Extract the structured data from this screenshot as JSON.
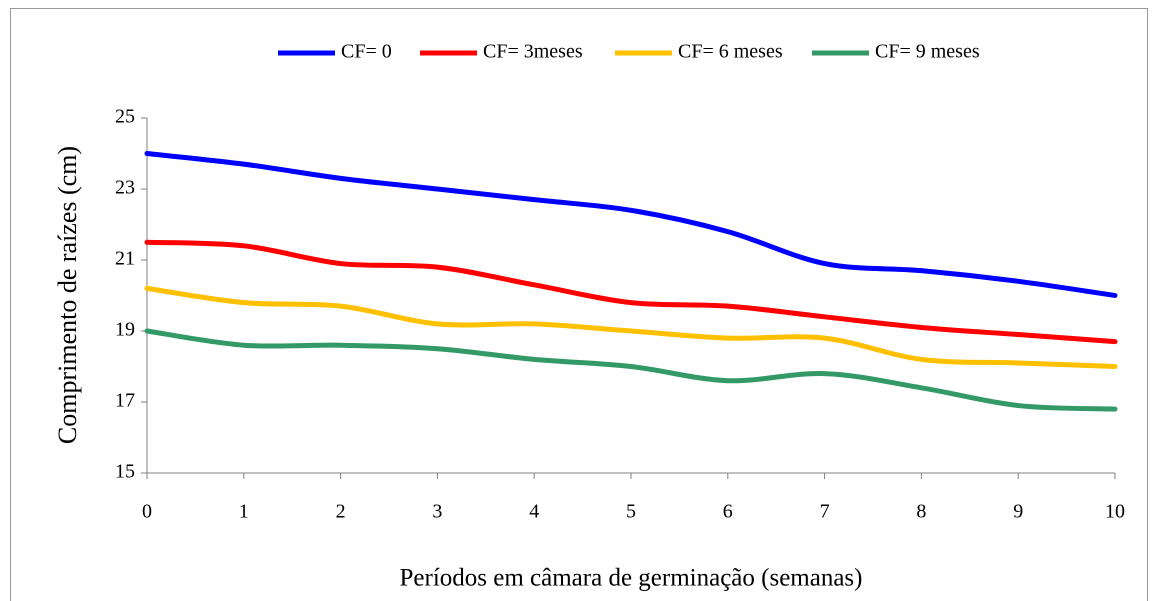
{
  "chart_data": {
    "type": "line",
    "x_label": "Períodos em câmara de germinação (semanas)",
    "y_label": "Comprimento de raízes (cm)",
    "x": [
      0,
      1,
      2,
      3,
      4,
      5,
      6,
      7,
      8,
      9,
      10
    ],
    "xlim": [
      0,
      10
    ],
    "xticks": [
      0,
      1,
      2,
      3,
      4,
      5,
      6,
      7,
      8,
      9,
      10
    ],
    "ylim": [
      15,
      25
    ],
    "yticks": [
      15,
      17,
      19,
      21,
      23,
      25
    ],
    "grid": false,
    "smooth": true,
    "legend": "top",
    "series": [
      {
        "name": "CF= 0",
        "color": "#0000ff",
        "values": [
          24.0,
          23.7,
          23.3,
          23.0,
          22.7,
          22.4,
          21.8,
          20.9,
          20.7,
          20.4,
          20.0
        ]
      },
      {
        "name": "CF= 3meses",
        "color": "#ff0000",
        "values": [
          21.5,
          21.4,
          20.9,
          20.8,
          20.3,
          19.8,
          19.7,
          19.4,
          19.1,
          18.9,
          18.7
        ]
      },
      {
        "name": "CF= 6 meses",
        "color": "#ffc000",
        "values": [
          20.2,
          19.8,
          19.7,
          19.2,
          19.2,
          19.0,
          18.8,
          18.8,
          18.2,
          18.1,
          18.0
        ]
      },
      {
        "name": "CF= 9 meses",
        "color": "#339966",
        "values": [
          19.0,
          18.6,
          18.6,
          18.5,
          18.2,
          18.0,
          17.6,
          17.8,
          17.4,
          16.9,
          16.8
        ]
      }
    ]
  }
}
